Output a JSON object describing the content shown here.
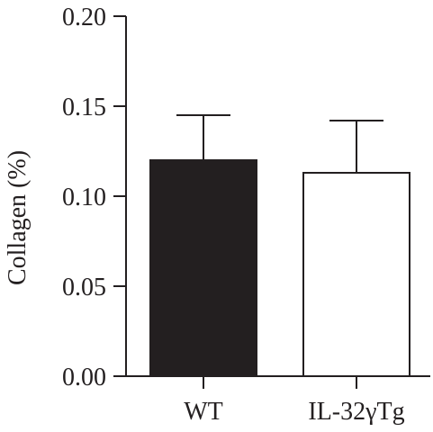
{
  "chart_data": {
    "type": "bar",
    "title": "",
    "xlabel": "",
    "ylabel": "Collagen (%)",
    "ylim": [
      0,
      0.2
    ],
    "yticks": [
      "0.00",
      "0.05",
      "0.10",
      "0.15",
      "0.20"
    ],
    "yticks_values": [
      0,
      0.05,
      0.1,
      0.15,
      0.2
    ],
    "categories": [
      "WT",
      "IL-32γTg"
    ],
    "values": [
      0.12,
      0.113
    ],
    "error": [
      0.025,
      0.029
    ],
    "bar_fill": [
      "#231f20",
      "#ffffff"
    ],
    "bar_stroke": "#231f20",
    "grid": false,
    "legend": "none"
  }
}
